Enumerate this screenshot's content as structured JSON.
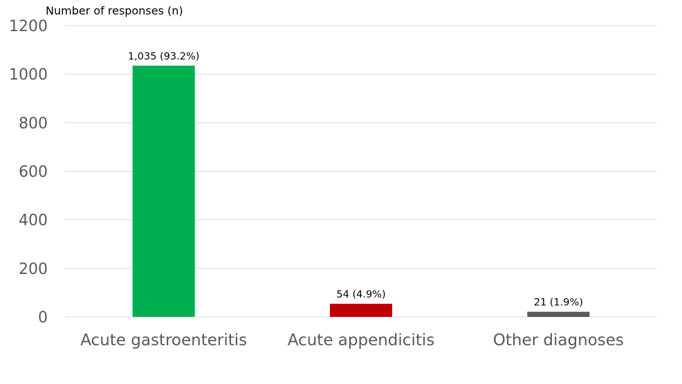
{
  "chart_data": {
    "type": "bar",
    "title": "",
    "xlabel": "",
    "ylabel": "Number of responses (n)",
    "ylim": [
      0,
      1200
    ],
    "yticks": [
      0,
      200,
      400,
      600,
      800,
      1000,
      1200
    ],
    "ytick_labels": [
      "0",
      "200",
      "400",
      "600",
      "800",
      "1000",
      "1200"
    ],
    "grid": true,
    "legend": "none",
    "categories": [
      "Acute gastroenteritis",
      "Acute appendicitis",
      "Other diagnoses"
    ],
    "values": [
      1035,
      54,
      21
    ],
    "data_labels": [
      "1,035 (93.2%)",
      "54 (4.9%)",
      "21 (1.9%)"
    ],
    "colors": [
      "#00b050",
      "#c00000",
      "#595959"
    ]
  }
}
